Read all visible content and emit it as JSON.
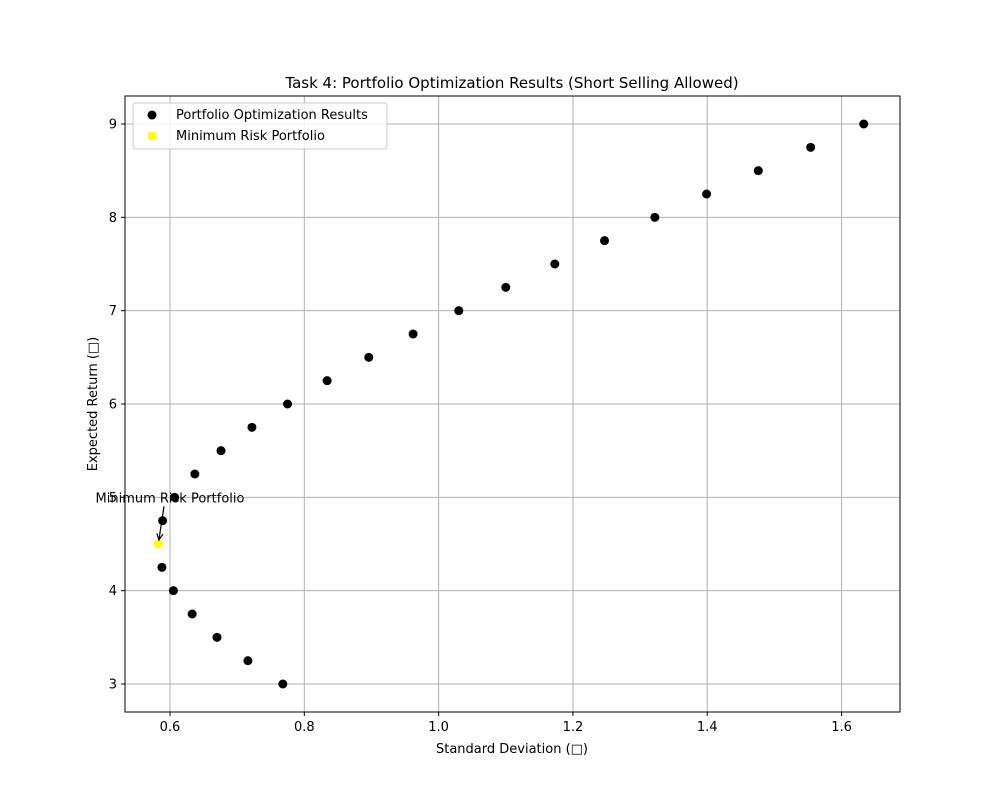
{
  "chart_data": {
    "type": "scatter",
    "title": "Task 4: Portfolio Optimization Results (Short Selling Allowed)",
    "xlabel": "Standard Deviation (□)",
    "ylabel": "Expected Return (□)",
    "xlim": [
      0.533,
      1.687
    ],
    "ylim": [
      2.7,
      9.3
    ],
    "xticks": [
      0.6,
      0.8,
      1.0,
      1.2,
      1.4,
      1.6
    ],
    "xtick_labels": [
      "0.6",
      "0.8",
      "1.0",
      "1.2",
      "1.4",
      "1.6"
    ],
    "yticks": [
      3,
      4,
      5,
      6,
      7,
      8,
      9
    ],
    "ytick_labels": [
      "3",
      "4",
      "5",
      "6",
      "7",
      "8",
      "9"
    ],
    "grid": true,
    "legend_position": "top-left",
    "series": [
      {
        "name": "Portfolio Optimization Results",
        "color": "#000000",
        "points": [
          {
            "x": 0.768,
            "y": 3.0
          },
          {
            "x": 0.716,
            "y": 3.25
          },
          {
            "x": 0.67,
            "y": 3.5
          },
          {
            "x": 0.633,
            "y": 3.75
          },
          {
            "x": 0.605,
            "y": 4.0
          },
          {
            "x": 0.588,
            "y": 4.25
          },
          {
            "x": 0.589,
            "y": 4.75
          },
          {
            "x": 0.607,
            "y": 5.0
          },
          {
            "x": 0.637,
            "y": 5.25
          },
          {
            "x": 0.676,
            "y": 5.5
          },
          {
            "x": 0.722,
            "y": 5.75
          },
          {
            "x": 0.775,
            "y": 6.0
          },
          {
            "x": 0.834,
            "y": 6.25
          },
          {
            "x": 0.896,
            "y": 6.5
          },
          {
            "x": 0.962,
            "y": 6.75
          },
          {
            "x": 1.03,
            "y": 7.0
          },
          {
            "x": 1.1,
            "y": 7.25
          },
          {
            "x": 1.173,
            "y": 7.5
          },
          {
            "x": 1.247,
            "y": 7.75
          },
          {
            "x": 1.322,
            "y": 8.0
          },
          {
            "x": 1.399,
            "y": 8.25
          },
          {
            "x": 1.476,
            "y": 8.5
          },
          {
            "x": 1.554,
            "y": 8.75
          },
          {
            "x": 1.633,
            "y": 9.0
          }
        ]
      },
      {
        "name": "Minimum Risk Portfolio",
        "color": "#ffff00",
        "points": [
          {
            "x": 0.582,
            "y": 4.5
          }
        ]
      }
    ],
    "annotation": {
      "text": "Minimum Risk Portfolio",
      "x": 0.582,
      "y": 4.5,
      "text_x": 0.6,
      "text_y": 5.0
    }
  }
}
